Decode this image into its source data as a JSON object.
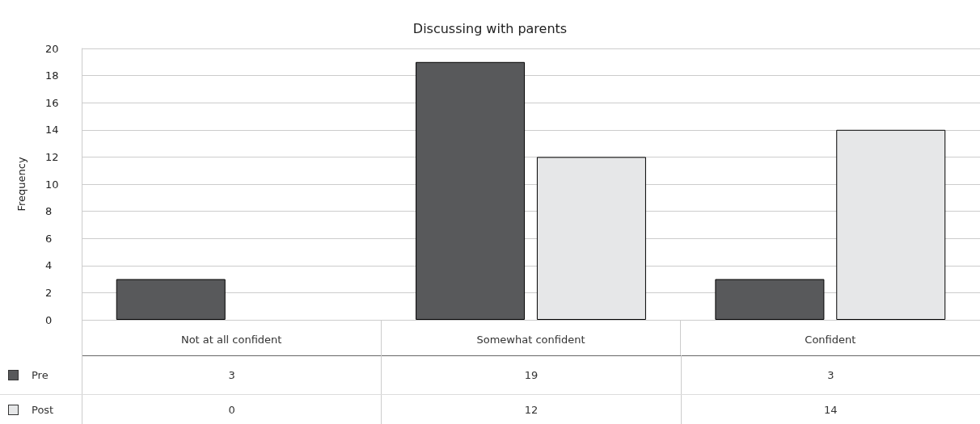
{
  "chart_data": {
    "type": "bar",
    "title": "Discussing with parents",
    "ylabel": "Frequency",
    "categories": [
      "Not at all confident",
      "Somewhat confident",
      "Confident"
    ],
    "series": [
      {
        "name": "Pre",
        "color": "#58595b",
        "values": [
          3,
          19,
          3
        ]
      },
      {
        "name": "Post",
        "color": "#e6e7e8",
        "values": [
          0,
          12,
          14
        ]
      }
    ],
    "ylim": [
      0,
      20
    ],
    "yticks": [
      0,
      2,
      4,
      6,
      8,
      10,
      12,
      14,
      16,
      18,
      20
    ],
    "grid": "y",
    "legend": "bottom left",
    "data_labels": true
  }
}
